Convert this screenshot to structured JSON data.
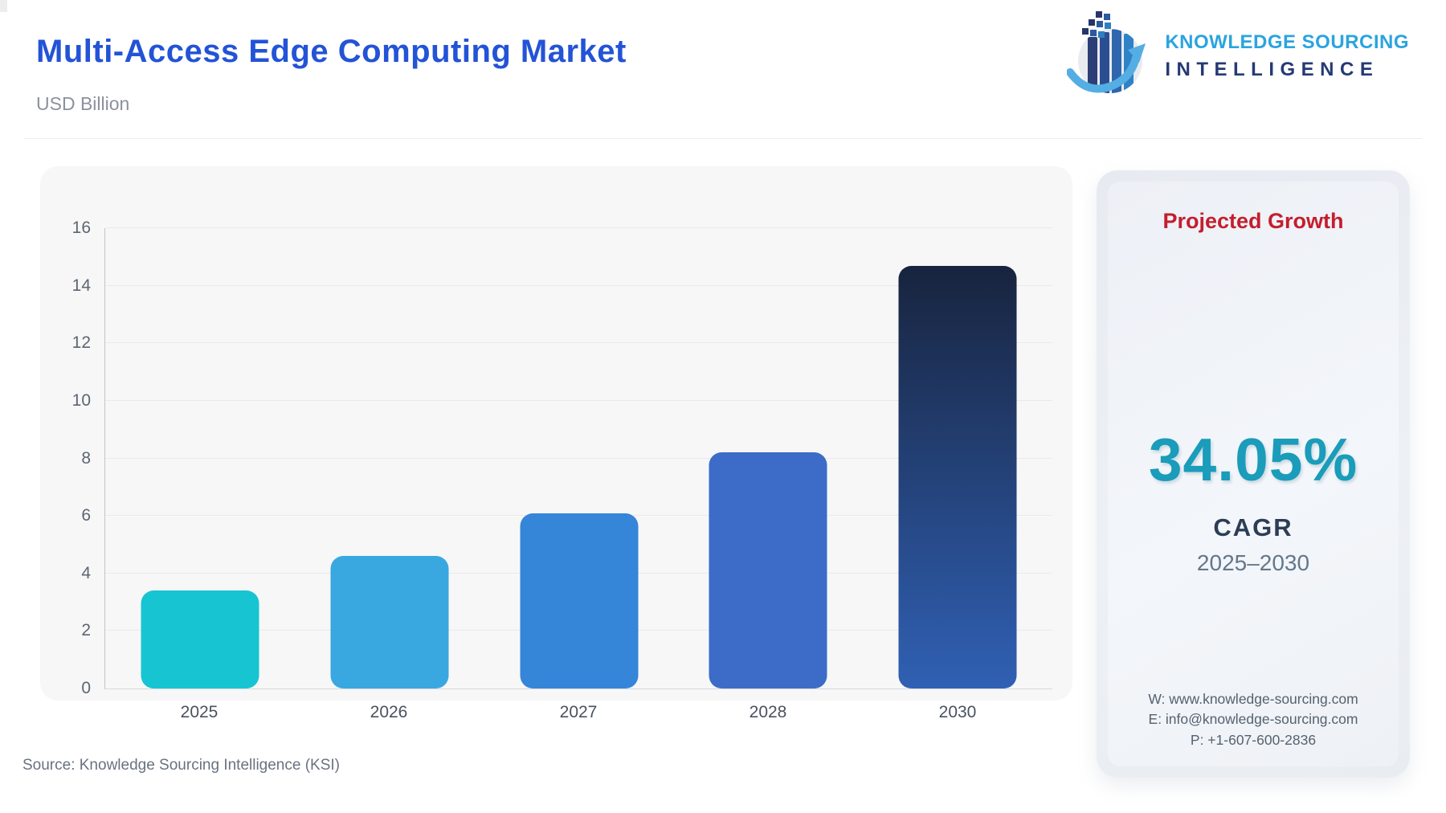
{
  "page": {
    "title": "Multi-Access Edge Computing Market",
    "subtitle": "USD Billion",
    "source": "Source: Knowledge Sourcing Intelligence (KSI)"
  },
  "logo": {
    "line1": "KNOWLEDGE SOURCING",
    "line2": "INTELLIGENCE",
    "line1_color": "#2ba4df",
    "line2_color": "#253a75"
  },
  "chart_data": {
    "type": "bar",
    "title": "Multi-Access Edge Computing Market",
    "unit": "USD Billion",
    "categories": [
      "2025",
      "2026",
      "2027",
      "2028",
      "2030"
    ],
    "values": [
      3.4,
      4.6,
      6.1,
      8.2,
      14.7
    ],
    "bar_colors": [
      "#17c4d2",
      "#39a7e0",
      "#3585d9",
      "#3c6cc8",
      [
        "#18243e",
        "#3060b4"
      ]
    ],
    "ylim": [
      0,
      16
    ],
    "y_ticks": [
      0,
      2,
      4,
      6,
      8,
      10,
      12,
      14,
      16
    ],
    "grid": true,
    "legend": "none",
    "xlabel": "",
    "ylabel": ""
  },
  "growth_card": {
    "heading": "Projected Growth",
    "heading_color": "#c41e2d",
    "value": "34.05%",
    "value_color": "#1a9cba",
    "label": "CAGR",
    "period": "2025–2030",
    "contact": {
      "website": "W: www.knowledge-sourcing.com",
      "email": "E: info@knowledge-sourcing.com",
      "phone": "P: +1-607-600-2836"
    }
  }
}
